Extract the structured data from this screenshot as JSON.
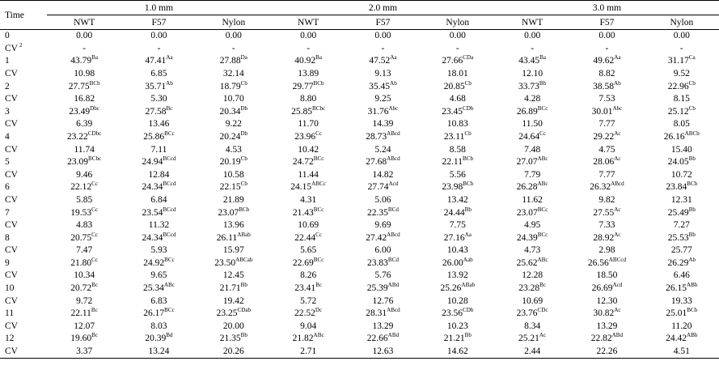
{
  "table": {
    "time_header": "Time",
    "groups": [
      {
        "label": "1.0 mm",
        "subcols": [
          "NWT",
          "F57",
          "Nylon"
        ]
      },
      {
        "label": "2.0 mm",
        "subcols": [
          "NWT",
          "F57",
          "Nylon"
        ]
      },
      {
        "label": "3.0 mm",
        "subcols": [
          "NWT",
          "F57",
          "Nylon"
        ]
      }
    ],
    "rows": [
      {
        "label": "0",
        "cells": [
          [
            "0.00",
            ""
          ],
          [
            "0.00",
            ""
          ],
          [
            "0.00",
            ""
          ],
          [
            "0.00",
            ""
          ],
          [
            "0.00",
            ""
          ],
          [
            "0.00",
            ""
          ],
          [
            "0.00",
            ""
          ],
          [
            "0.00",
            ""
          ],
          [
            "0.00",
            ""
          ]
        ]
      },
      {
        "label": "CV",
        "label_sup": "2",
        "cells": [
          [
            "-",
            ""
          ],
          [
            "-",
            ""
          ],
          [
            "-",
            ""
          ],
          [
            "-",
            ""
          ],
          [
            "-",
            ""
          ],
          [
            "-",
            ""
          ],
          [
            "-",
            ""
          ],
          [
            "-",
            ""
          ],
          [
            "-",
            ""
          ]
        ]
      },
      {
        "label": "1",
        "cells": [
          [
            "43.79",
            "Ba"
          ],
          [
            "47.41",
            "Aa"
          ],
          [
            "27.88",
            "Da"
          ],
          [
            "40.92",
            "Ba"
          ],
          [
            "47.52",
            "Aa"
          ],
          [
            "27.66",
            "CDa"
          ],
          [
            "43.45",
            "Ba"
          ],
          [
            "49.62",
            "Aa"
          ],
          [
            "31.17",
            "Ca"
          ]
        ]
      },
      {
        "label": "CV",
        "cells": [
          [
            "10.98",
            ""
          ],
          [
            "6.85",
            ""
          ],
          [
            "32.14",
            ""
          ],
          [
            "13.89",
            ""
          ],
          [
            "9.13",
            ""
          ],
          [
            "18.01",
            ""
          ],
          [
            "12.10",
            ""
          ],
          [
            "8.82",
            ""
          ],
          [
            "9.52",
            ""
          ]
        ]
      },
      {
        "label": "2",
        "cells": [
          [
            "27.75",
            "BCb"
          ],
          [
            "35.71",
            "Ab"
          ],
          [
            "18.79",
            "Cb"
          ],
          [
            "29.77",
            "BCb"
          ],
          [
            "35.45",
            "Ab"
          ],
          [
            "20.85",
            "Cb"
          ],
          [
            "33.73",
            "Bb"
          ],
          [
            "38.58",
            "Ab"
          ],
          [
            "22.96",
            "Cb"
          ]
        ]
      },
      {
        "label": "CV",
        "cells": [
          [
            "16.82",
            ""
          ],
          [
            "5.30",
            ""
          ],
          [
            "10.70",
            ""
          ],
          [
            "8.80",
            ""
          ],
          [
            "9.25",
            ""
          ],
          [
            "4.68",
            ""
          ],
          [
            "4.28",
            ""
          ],
          [
            "7.53",
            ""
          ],
          [
            "8.15",
            ""
          ]
        ]
      },
      {
        "label": "3",
        "cells": [
          [
            "23.49",
            "Dbc"
          ],
          [
            "27.58",
            "Bc"
          ],
          [
            "20.34",
            "Db"
          ],
          [
            "25.85",
            "BCbc"
          ],
          [
            "31.76",
            "Abc"
          ],
          [
            "23.45",
            "CDb"
          ],
          [
            "26.89",
            "BCc"
          ],
          [
            "30.01",
            "Abc"
          ],
          [
            "25.12",
            "Cb"
          ]
        ]
      },
      {
        "label": "CV",
        "cells": [
          [
            "6.39",
            ""
          ],
          [
            "13.46",
            ""
          ],
          [
            "9.22",
            ""
          ],
          [
            "11.70",
            ""
          ],
          [
            "14.39",
            ""
          ],
          [
            "10.83",
            ""
          ],
          [
            "11.50",
            ""
          ],
          [
            "7.77",
            ""
          ],
          [
            "8.05",
            ""
          ]
        ]
      },
      {
        "label": "4",
        "cells": [
          [
            "23.22",
            "CDbc"
          ],
          [
            "25.86",
            "BCc"
          ],
          [
            "20.24",
            "Db"
          ],
          [
            "23.96",
            "Cc"
          ],
          [
            "28.73",
            "ABcd"
          ],
          [
            "23.11",
            "Cb"
          ],
          [
            "24.64",
            "Cc"
          ],
          [
            "29.22",
            "Ac"
          ],
          [
            "26.16",
            "ABCb"
          ]
        ]
      },
      {
        "label": "CV",
        "cells": [
          [
            "11.74",
            ""
          ],
          [
            "7.11",
            ""
          ],
          [
            "4.53",
            ""
          ],
          [
            "10.42",
            ""
          ],
          [
            "5.24",
            ""
          ],
          [
            "8.58",
            ""
          ],
          [
            "7.48",
            ""
          ],
          [
            "4.75",
            ""
          ],
          [
            "15.40",
            ""
          ]
        ]
      },
      {
        "label": "5",
        "cells": [
          [
            "23.09",
            "BCbc"
          ],
          [
            "24.94",
            "BCcd"
          ],
          [
            "20.19",
            "Cb"
          ],
          [
            "24.72",
            "BCc"
          ],
          [
            "27.68",
            "ABcd"
          ],
          [
            "22.11",
            "BCb"
          ],
          [
            "27.07",
            "ABc"
          ],
          [
            "28.06",
            "Ac"
          ],
          [
            "24.05",
            "Bb"
          ]
        ]
      },
      {
        "label": "CV",
        "cells": [
          [
            "9.46",
            ""
          ],
          [
            "12.84",
            ""
          ],
          [
            "10.58",
            ""
          ],
          [
            "11.44",
            ""
          ],
          [
            "14.82",
            ""
          ],
          [
            "5.56",
            ""
          ],
          [
            "7.79",
            ""
          ],
          [
            "7.77",
            ""
          ],
          [
            "10.72",
            ""
          ]
        ]
      },
      {
        "label": "6",
        "cells": [
          [
            "22.12",
            "Cc"
          ],
          [
            "24.34",
            "BCcd"
          ],
          [
            "22.15",
            "Cb"
          ],
          [
            "24.15",
            "ABCc"
          ],
          [
            "27.74",
            "Acd"
          ],
          [
            "23.98",
            "BCb"
          ],
          [
            "26.28",
            "ABc"
          ],
          [
            "26.32",
            "ABcd"
          ],
          [
            "23.84",
            "BCb"
          ]
        ]
      },
      {
        "label": "CV",
        "cells": [
          [
            "5.85",
            ""
          ],
          [
            "6.84",
            ""
          ],
          [
            "21.89",
            ""
          ],
          [
            "4.31",
            ""
          ],
          [
            "5.06",
            ""
          ],
          [
            "13.42",
            ""
          ],
          [
            "11.62",
            ""
          ],
          [
            "9.82",
            ""
          ],
          [
            "12.31",
            ""
          ]
        ]
      },
      {
        "label": "7",
        "cells": [
          [
            "19.53",
            "Cc"
          ],
          [
            "23.54",
            "BCcd"
          ],
          [
            "23.07",
            "BCb"
          ],
          [
            "21.43",
            "BCc"
          ],
          [
            "22.35",
            "BCd"
          ],
          [
            "24.44",
            "Bb"
          ],
          [
            "23.07",
            "BCc"
          ],
          [
            "27.55",
            "Ac"
          ],
          [
            "25.49",
            "Bb"
          ]
        ]
      },
      {
        "label": "CV",
        "cells": [
          [
            "4.83",
            ""
          ],
          [
            "11.32",
            ""
          ],
          [
            "13.96",
            ""
          ],
          [
            "10.69",
            ""
          ],
          [
            "9.69",
            ""
          ],
          [
            "7.75",
            ""
          ],
          [
            "4.95",
            ""
          ],
          [
            "7.33",
            ""
          ],
          [
            "7.27",
            ""
          ]
        ]
      },
      {
        "label": "8",
        "cells": [
          [
            "20.75",
            "Cc"
          ],
          [
            "24.34",
            "BCcd"
          ],
          [
            "26.11",
            "ABab"
          ],
          [
            "22.44",
            "Cc"
          ],
          [
            "27.42",
            "ABcd"
          ],
          [
            "27.16",
            "Aa"
          ],
          [
            "24.39",
            "BCc"
          ],
          [
            "28.92",
            "Ac"
          ],
          [
            "25.53",
            "Bb"
          ]
        ]
      },
      {
        "label": "CV",
        "cells": [
          [
            "7.47",
            ""
          ],
          [
            "5.93",
            ""
          ],
          [
            "15.97",
            ""
          ],
          [
            "5.65",
            ""
          ],
          [
            "6.00",
            ""
          ],
          [
            "10.43",
            ""
          ],
          [
            "4.73",
            ""
          ],
          [
            "2.98",
            ""
          ],
          [
            "25.77",
            ""
          ]
        ]
      },
      {
        "label": "9",
        "cells": [
          [
            "21.80",
            "Cc"
          ],
          [
            "24.92",
            "BCc"
          ],
          [
            "23.50",
            "ABCab"
          ],
          [
            "22.69",
            "BCc"
          ],
          [
            "23.83",
            "BCd"
          ],
          [
            "26.00",
            "Aab"
          ],
          [
            "25.62",
            "ABc"
          ],
          [
            "26.56",
            "ABCcd"
          ],
          [
            "26.29",
            "Ab"
          ]
        ]
      },
      {
        "label": "CV",
        "cells": [
          [
            "10.34",
            ""
          ],
          [
            "9.65",
            ""
          ],
          [
            "12.45",
            ""
          ],
          [
            "8.26",
            ""
          ],
          [
            "5.76",
            ""
          ],
          [
            "13.92",
            ""
          ],
          [
            "12.28",
            ""
          ],
          [
            "18.50",
            ""
          ],
          [
            "6.46",
            ""
          ]
        ]
      },
      {
        "label": "10",
        "cells": [
          [
            "20.72",
            "Bc"
          ],
          [
            "25.34",
            "ABc"
          ],
          [
            "21.71",
            "Bb"
          ],
          [
            "23.41",
            "Bc"
          ],
          [
            "25.39",
            "ABd"
          ],
          [
            "25.26",
            "ABab"
          ],
          [
            "23.28",
            "Bc"
          ],
          [
            "26.69",
            "Acd"
          ],
          [
            "26.15",
            "ABb"
          ]
        ]
      },
      {
        "label": "CV",
        "cells": [
          [
            "9.72",
            ""
          ],
          [
            "6.83",
            ""
          ],
          [
            "19.42",
            ""
          ],
          [
            "5.72",
            ""
          ],
          [
            "12.76",
            ""
          ],
          [
            "10.28",
            ""
          ],
          [
            "10.69",
            ""
          ],
          [
            "12.30",
            ""
          ],
          [
            "19.33",
            ""
          ]
        ]
      },
      {
        "label": "11",
        "cells": [
          [
            "22.11",
            "Bc"
          ],
          [
            "26.17",
            "BCc"
          ],
          [
            "23.25",
            "CDab"
          ],
          [
            "22.52",
            "Dc"
          ],
          [
            "28.31",
            "ABcd"
          ],
          [
            "23.56",
            "CDb"
          ],
          [
            "23.76",
            "CDc"
          ],
          [
            "30.82",
            "Ac"
          ],
          [
            "25.01",
            "BCb"
          ]
        ]
      },
      {
        "label": "CV",
        "cells": [
          [
            "12.07",
            ""
          ],
          [
            "8.03",
            ""
          ],
          [
            "20.00",
            ""
          ],
          [
            "9.04",
            ""
          ],
          [
            "13.29",
            ""
          ],
          [
            "10.23",
            ""
          ],
          [
            "8.34",
            ""
          ],
          [
            "13.29",
            ""
          ],
          [
            "11.20",
            ""
          ]
        ]
      },
      {
        "label": "12",
        "cells": [
          [
            "19.60",
            "Bc"
          ],
          [
            "20.39",
            "Bd"
          ],
          [
            "21.35",
            "Bb"
          ],
          [
            "21.82",
            "ABc"
          ],
          [
            "22.66",
            "ABd"
          ],
          [
            "21.21",
            "Bb"
          ],
          [
            "25.21",
            "Ac"
          ],
          [
            "22.82",
            "ABd"
          ],
          [
            "24.42",
            "ABb"
          ]
        ]
      },
      {
        "label": "CV",
        "cells": [
          [
            "3.37",
            ""
          ],
          [
            "13.24",
            ""
          ],
          [
            "20.26",
            ""
          ],
          [
            "2.71",
            ""
          ],
          [
            "12.63",
            ""
          ],
          [
            "14.62",
            ""
          ],
          [
            "2.44",
            ""
          ],
          [
            "22.26",
            ""
          ],
          [
            "4.51",
            ""
          ]
        ]
      }
    ]
  }
}
